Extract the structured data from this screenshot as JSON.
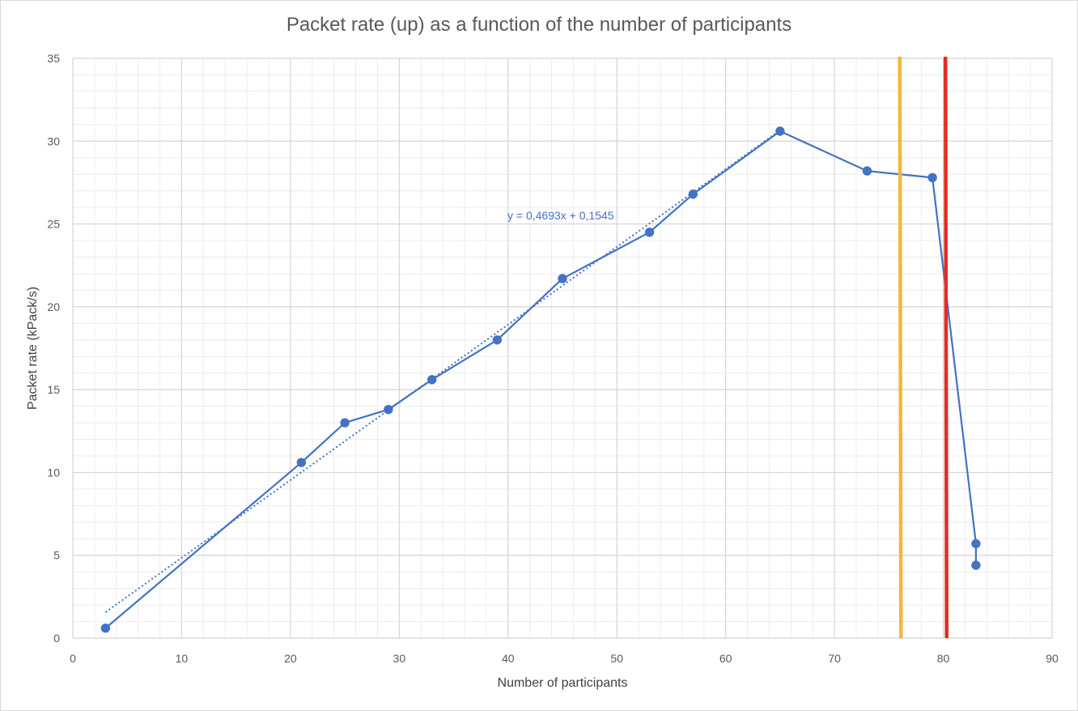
{
  "chart_data": {
    "type": "scatter",
    "title": "Packet rate (up) as a function of the number of participants",
    "xlabel": "Number of participants",
    "ylabel": "Packet rate (kPack/s)",
    "xlim": [
      0,
      90
    ],
    "ylim": [
      0,
      35
    ],
    "x_major_step": 10,
    "x_minor_step": 2,
    "y_major_step": 5,
    "y_minor_step": 1,
    "x_ticks": [
      "0",
      "10",
      "20",
      "30",
      "40",
      "50",
      "60",
      "70",
      "80",
      "90"
    ],
    "y_ticks": [
      "0",
      "5",
      "10",
      "15",
      "20",
      "25",
      "30",
      "35"
    ],
    "grid": true,
    "series": [
      {
        "color": "#4472c4",
        "points": [
          {
            "x": 3,
            "y": 0.6
          },
          {
            "x": 21,
            "y": 10.6
          },
          {
            "x": 25,
            "y": 13.0
          },
          {
            "x": 29,
            "y": 13.8
          },
          {
            "x": 33,
            "y": 15.6
          },
          {
            "x": 39,
            "y": 18.0
          },
          {
            "x": 45,
            "y": 21.7
          },
          {
            "x": 53,
            "y": 24.5
          },
          {
            "x": 57,
            "y": 26.8
          },
          {
            "x": 65,
            "y": 30.6
          },
          {
            "x": 73,
            "y": 28.2
          },
          {
            "x": 79,
            "y": 27.8
          },
          {
            "x": 83,
            "y": 5.7
          },
          {
            "x": 83,
            "y": 4.4
          }
        ]
      }
    ],
    "trendline": {
      "type": "linear",
      "slope": 0.4693,
      "intercept": 0.1545,
      "x_range": [
        3,
        65
      ],
      "label": "y = 0,4693x + 0,1545",
      "color": "#4472c4"
    },
    "vertical_lines": [
      {
        "x": 76,
        "color": "#f4b63a"
      },
      {
        "x": 80.2,
        "color": "#e32d22"
      }
    ]
  }
}
